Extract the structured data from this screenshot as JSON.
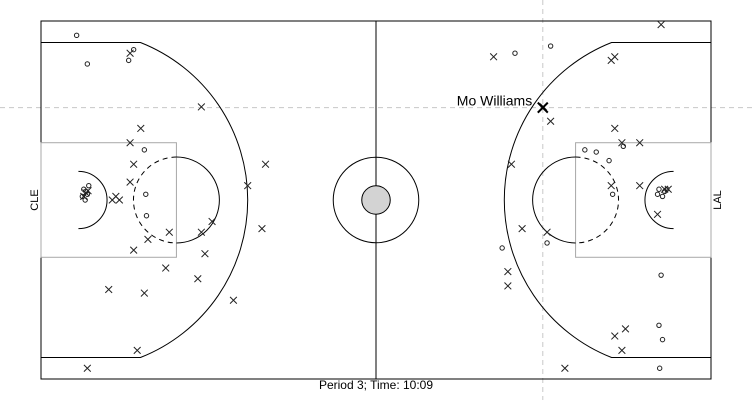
{
  "chart_data": {
    "type": "scatter",
    "title": "",
    "caption": "Period 3; Time: 10:09",
    "team_left": "CLE",
    "team_right": "LAL",
    "xlim": [
      0,
      94
    ],
    "ylim": [
      0,
      50
    ],
    "legend": "none",
    "highlight": {
      "label": "Mo Williams",
      "x": 70.4,
      "y": 37.9
    },
    "series": [
      {
        "marker": "x",
        "points": [
          [
            6.5,
            1.5
          ],
          [
            13.5,
            4
          ],
          [
            9.5,
            12.5
          ],
          [
            14.5,
            12
          ],
          [
            17.5,
            15.5
          ],
          [
            22,
            14
          ],
          [
            27,
            11
          ],
          [
            31,
            21
          ],
          [
            13,
            18
          ],
          [
            23,
            17.5
          ],
          [
            22.5,
            20.5
          ],
          [
            24,
            22
          ],
          [
            15,
            19.5
          ],
          [
            11,
            25
          ],
          [
            12.5,
            27.5
          ],
          [
            13,
            30
          ],
          [
            12.5,
            33
          ],
          [
            14,
            35
          ],
          [
            22.5,
            38
          ],
          [
            29,
            27
          ],
          [
            10,
            25
          ],
          [
            10.5,
            25.5
          ],
          [
            6,
            25.5
          ],
          [
            6.3,
            26
          ],
          [
            6.6,
            26.3
          ],
          [
            12.5,
            45.5
          ],
          [
            18,
            20.5
          ],
          [
            31.5,
            30
          ],
          [
            73.5,
            1.5
          ],
          [
            81.5,
            4
          ],
          [
            82,
            7
          ],
          [
            80.5,
            6
          ],
          [
            65.5,
            13
          ],
          [
            65.5,
            15
          ],
          [
            67.5,
            21
          ],
          [
            71,
            20.5
          ],
          [
            66,
            30
          ],
          [
            70.5,
            38
          ],
          [
            71.5,
            36
          ],
          [
            80.5,
            35
          ],
          [
            81.5,
            33
          ],
          [
            84,
            33
          ],
          [
            80,
            27
          ],
          [
            84,
            27
          ],
          [
            86.5,
            23
          ],
          [
            80,
            44.5
          ],
          [
            80.5,
            45
          ],
          [
            63.5,
            45
          ],
          [
            87,
            49.5
          ],
          [
            88,
            26.5
          ],
          [
            87.5,
            26.5
          ]
        ]
      },
      {
        "marker": "o",
        "points": [
          [
            5,
            48
          ],
          [
            6.5,
            44
          ],
          [
            12.3,
            44.5
          ],
          [
            13,
            46
          ],
          [
            14.5,
            32
          ],
          [
            14.7,
            25.8
          ],
          [
            14.8,
            22.8
          ],
          [
            6,
            26.5
          ],
          [
            6.2,
            25
          ],
          [
            6.7,
            27
          ],
          [
            5.8,
            25.5
          ],
          [
            6.3,
            26.2
          ],
          [
            6.5,
            25.8
          ],
          [
            66.5,
            45.5
          ],
          [
            71.5,
            46.5
          ],
          [
            76.3,
            32
          ],
          [
            77.9,
            31.7
          ],
          [
            79.7,
            30.5
          ],
          [
            81.7,
            32.5
          ],
          [
            80.2,
            25.8
          ],
          [
            71,
            19
          ],
          [
            64.7,
            18.3
          ],
          [
            87,
            14.5
          ],
          [
            86.7,
            7.5
          ],
          [
            87.2,
            5.5
          ],
          [
            86.8,
            1.5
          ],
          [
            86.7,
            26.5
          ],
          [
            87.2,
            25.5
          ],
          [
            87.5,
            26.2
          ],
          [
            86.5,
            25.8
          ],
          [
            87.8,
            26.5
          ]
        ]
      }
    ]
  }
}
